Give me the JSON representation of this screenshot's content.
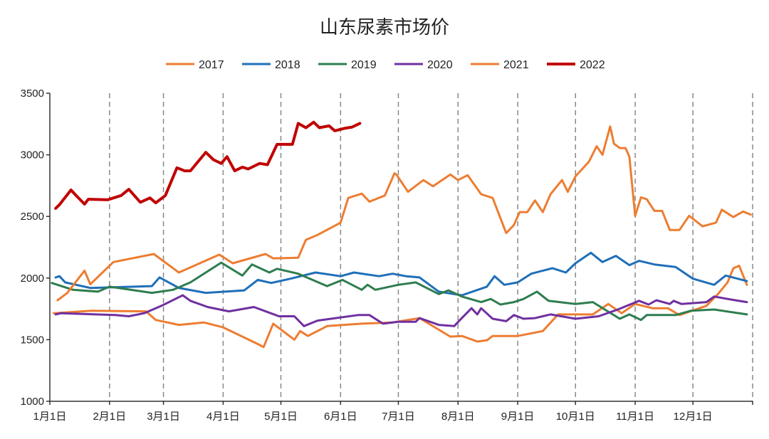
{
  "chart_data": {
    "type": "line",
    "title": "山东尿素市场价",
    "xlabel": "",
    "ylabel": "",
    "x_unit": "day of year",
    "xlim": [
      0,
      365
    ],
    "ylim": [
      1000,
      3500
    ],
    "yticks": [
      1000,
      1500,
      2000,
      2500,
      3000,
      3500
    ],
    "xticks": [
      {
        "day": 0,
        "label": "1月1日"
      },
      {
        "day": 31,
        "label": "2月1日"
      },
      {
        "day": 59,
        "label": "3月1日"
      },
      {
        "day": 90,
        "label": "4月1日"
      },
      {
        "day": 120,
        "label": "5月1日"
      },
      {
        "day": 151,
        "label": "6月1日"
      },
      {
        "day": 181,
        "label": "7月1日"
      },
      {
        "day": 212,
        "label": "8月1日"
      },
      {
        "day": 243,
        "label": "9月1日"
      },
      {
        "day": 273,
        "label": "10月1日"
      },
      {
        "day": 304,
        "label": "11月1日"
      },
      {
        "day": 334,
        "label": "12月1日"
      }
    ],
    "grid": "vertical dashed at month starts",
    "legend_position": "top",
    "series": [
      {
        "name": "2017",
        "color": "#ED7D31",
        "width": 3,
        "points": [
          [
            2,
            1715
          ],
          [
            22,
            1735
          ],
          [
            50,
            1730
          ],
          [
            55,
            1660
          ],
          [
            67,
            1620
          ],
          [
            80,
            1640
          ],
          [
            90,
            1600
          ],
          [
            108,
            1465
          ],
          [
            111,
            1440
          ],
          [
            116,
            1630
          ],
          [
            127,
            1500
          ],
          [
            130,
            1570
          ],
          [
            134,
            1530
          ],
          [
            144,
            1610
          ],
          [
            162,
            1630
          ],
          [
            178,
            1640
          ],
          [
            192,
            1675
          ],
          [
            208,
            1525
          ],
          [
            214,
            1530
          ],
          [
            222,
            1485
          ],
          [
            227,
            1495
          ],
          [
            230,
            1530
          ],
          [
            243,
            1530
          ],
          [
            256,
            1570
          ],
          [
            264,
            1705
          ],
          [
            282,
            1705
          ],
          [
            290,
            1790
          ],
          [
            297,
            1715
          ],
          [
            304,
            1790
          ],
          [
            313,
            1755
          ],
          [
            321,
            1755
          ],
          [
            327,
            1700
          ],
          [
            341,
            1775
          ],
          [
            347,
            1870
          ],
          [
            352,
            1965
          ],
          [
            355,
            2080
          ],
          [
            358,
            2100
          ],
          [
            362,
            1945
          ]
        ]
      },
      {
        "name": "2018",
        "color": "#1F6FB8",
        "width": 3,
        "points": [
          [
            3,
            2005
          ],
          [
            5,
            2015
          ],
          [
            8,
            1965
          ],
          [
            21,
            1920
          ],
          [
            53,
            1935
          ],
          [
            57,
            2005
          ],
          [
            67,
            1920
          ],
          [
            81,
            1880
          ],
          [
            101,
            1900
          ],
          [
            108,
            1985
          ],
          [
            115,
            1960
          ],
          [
            125,
            1995
          ],
          [
            138,
            2045
          ],
          [
            151,
            2015
          ],
          [
            158,
            2045
          ],
          [
            171,
            2015
          ],
          [
            178,
            2035
          ],
          [
            185,
            2015
          ],
          [
            192,
            2005
          ],
          [
            202,
            1890
          ],
          [
            214,
            1860
          ],
          [
            227,
            1930
          ],
          [
            231,
            2015
          ],
          [
            236,
            1945
          ],
          [
            243,
            1965
          ],
          [
            250,
            2035
          ],
          [
            261,
            2080
          ],
          [
            268,
            2045
          ],
          [
            273,
            2120
          ],
          [
            281,
            2205
          ],
          [
            287,
            2130
          ],
          [
            294,
            2180
          ],
          [
            301,
            2105
          ],
          [
            306,
            2140
          ],
          [
            314,
            2110
          ],
          [
            325,
            2090
          ],
          [
            334,
            1995
          ],
          [
            345,
            1945
          ],
          [
            351,
            2020
          ],
          [
            362,
            1975
          ]
        ]
      },
      {
        "name": "2019",
        "color": "#2E7D4F",
        "width": 3,
        "points": [
          [
            1,
            1960
          ],
          [
            12,
            1905
          ],
          [
            25,
            1890
          ],
          [
            31,
            1930
          ],
          [
            53,
            1880
          ],
          [
            64,
            1905
          ],
          [
            73,
            1965
          ],
          [
            89,
            2125
          ],
          [
            100,
            2020
          ],
          [
            105,
            2110
          ],
          [
            114,
            2045
          ],
          [
            118,
            2075
          ],
          [
            129,
            2035
          ],
          [
            144,
            1935
          ],
          [
            152,
            1985
          ],
          [
            162,
            1905
          ],
          [
            165,
            1945
          ],
          [
            169,
            1905
          ],
          [
            181,
            1945
          ],
          [
            190,
            1965
          ],
          [
            202,
            1870
          ],
          [
            207,
            1900
          ],
          [
            214,
            1850
          ],
          [
            224,
            1805
          ],
          [
            229,
            1830
          ],
          [
            234,
            1785
          ],
          [
            241,
            1805
          ],
          [
            246,
            1830
          ],
          [
            253,
            1890
          ],
          [
            259,
            1815
          ],
          [
            273,
            1790
          ],
          [
            282,
            1805
          ],
          [
            296,
            1670
          ],
          [
            301,
            1705
          ],
          [
            307,
            1660
          ],
          [
            310,
            1700
          ],
          [
            325,
            1700
          ],
          [
            333,
            1735
          ],
          [
            345,
            1745
          ],
          [
            362,
            1705
          ]
        ]
      },
      {
        "name": "2020",
        "color": "#7030A0",
        "width": 3,
        "points": [
          [
            3,
            1705
          ],
          [
            6,
            1715
          ],
          [
            34,
            1700
          ],
          [
            41,
            1690
          ],
          [
            49,
            1715
          ],
          [
            58,
            1775
          ],
          [
            69,
            1860
          ],
          [
            73,
            1815
          ],
          [
            82,
            1765
          ],
          [
            93,
            1730
          ],
          [
            106,
            1765
          ],
          [
            119,
            1690
          ],
          [
            127,
            1690
          ],
          [
            132,
            1610
          ],
          [
            139,
            1655
          ],
          [
            160,
            1700
          ],
          [
            166,
            1700
          ],
          [
            173,
            1630
          ],
          [
            181,
            1645
          ],
          [
            190,
            1645
          ],
          [
            192,
            1675
          ],
          [
            202,
            1620
          ],
          [
            210,
            1610
          ],
          [
            213,
            1660
          ],
          [
            219,
            1755
          ],
          [
            222,
            1705
          ],
          [
            224,
            1755
          ],
          [
            230,
            1670
          ],
          [
            237,
            1650
          ],
          [
            241,
            1700
          ],
          [
            246,
            1670
          ],
          [
            252,
            1675
          ],
          [
            260,
            1705
          ],
          [
            273,
            1670
          ],
          [
            285,
            1690
          ],
          [
            295,
            1745
          ],
          [
            306,
            1815
          ],
          [
            311,
            1785
          ],
          [
            315,
            1820
          ],
          [
            322,
            1790
          ],
          [
            324,
            1815
          ],
          [
            328,
            1790
          ],
          [
            341,
            1805
          ],
          [
            345,
            1850
          ],
          [
            356,
            1820
          ],
          [
            362,
            1805
          ]
        ]
      },
      {
        "name": "2021",
        "color": "#ED7D31",
        "width": 3,
        "points": [
          [
            4,
            1820
          ],
          [
            9,
            1878
          ],
          [
            18,
            2060
          ],
          [
            21,
            1950
          ],
          [
            33,
            2130
          ],
          [
            54,
            2195
          ],
          [
            67,
            2045
          ],
          [
            88,
            2190
          ],
          [
            95,
            2120
          ],
          [
            112,
            2195
          ],
          [
            116,
            2160
          ],
          [
            129,
            2165
          ],
          [
            133,
            2310
          ],
          [
            139,
            2350
          ],
          [
            151,
            2450
          ],
          [
            155,
            2650
          ],
          [
            162,
            2685
          ],
          [
            166,
            2620
          ],
          [
            174,
            2670
          ],
          [
            179,
            2850
          ],
          [
            180,
            2840
          ],
          [
            186,
            2700
          ],
          [
            194,
            2795
          ],
          [
            199,
            2745
          ],
          [
            208,
            2840
          ],
          [
            212,
            2795
          ],
          [
            217,
            2835
          ],
          [
            224,
            2680
          ],
          [
            230,
            2650
          ],
          [
            237,
            2365
          ],
          [
            241,
            2430
          ],
          [
            244,
            2535
          ],
          [
            248,
            2535
          ],
          [
            252,
            2630
          ],
          [
            256,
            2535
          ],
          [
            260,
            2680
          ],
          [
            266,
            2795
          ],
          [
            269,
            2700
          ],
          [
            273,
            2825
          ],
          [
            280,
            2945
          ],
          [
            284,
            3070
          ],
          [
            287,
            3000
          ],
          [
            291,
            3230
          ],
          [
            293,
            3090
          ],
          [
            296,
            3055
          ],
          [
            299,
            3055
          ],
          [
            301,
            2985
          ],
          [
            304,
            2505
          ],
          [
            307,
            2655
          ],
          [
            310,
            2640
          ],
          [
            314,
            2545
          ],
          [
            318,
            2545
          ],
          [
            322,
            2390
          ],
          [
            327,
            2390
          ],
          [
            332,
            2505
          ],
          [
            339,
            2420
          ],
          [
            346,
            2450
          ],
          [
            349,
            2555
          ],
          [
            355,
            2495
          ],
          [
            360,
            2540
          ],
          [
            364,
            2515
          ]
        ]
      },
      {
        "name": "2022",
        "color": "#C00000",
        "width": 4,
        "points": [
          [
            3,
            2565
          ],
          [
            5,
            2595
          ],
          [
            11,
            2715
          ],
          [
            13,
            2680
          ],
          [
            18,
            2600
          ],
          [
            20,
            2640
          ],
          [
            30,
            2635
          ],
          [
            37,
            2670
          ],
          [
            41,
            2720
          ],
          [
            47,
            2615
          ],
          [
            52,
            2650
          ],
          [
            55,
            2610
          ],
          [
            60,
            2670
          ],
          [
            66,
            2895
          ],
          [
            70,
            2870
          ],
          [
            73,
            2870
          ],
          [
            81,
            3020
          ],
          [
            85,
            2960
          ],
          [
            89,
            2930
          ],
          [
            92,
            2985
          ],
          [
            96,
            2870
          ],
          [
            100,
            2900
          ],
          [
            103,
            2885
          ],
          [
            109,
            2930
          ],
          [
            113,
            2920
          ],
          [
            118,
            3085
          ],
          [
            126,
            3085
          ],
          [
            129,
            3255
          ],
          [
            133,
            3220
          ],
          [
            137,
            3265
          ],
          [
            140,
            3220
          ],
          [
            145,
            3235
          ],
          [
            148,
            3195
          ],
          [
            153,
            3215
          ],
          [
            157,
            3225
          ],
          [
            161,
            3255
          ]
        ]
      }
    ]
  }
}
